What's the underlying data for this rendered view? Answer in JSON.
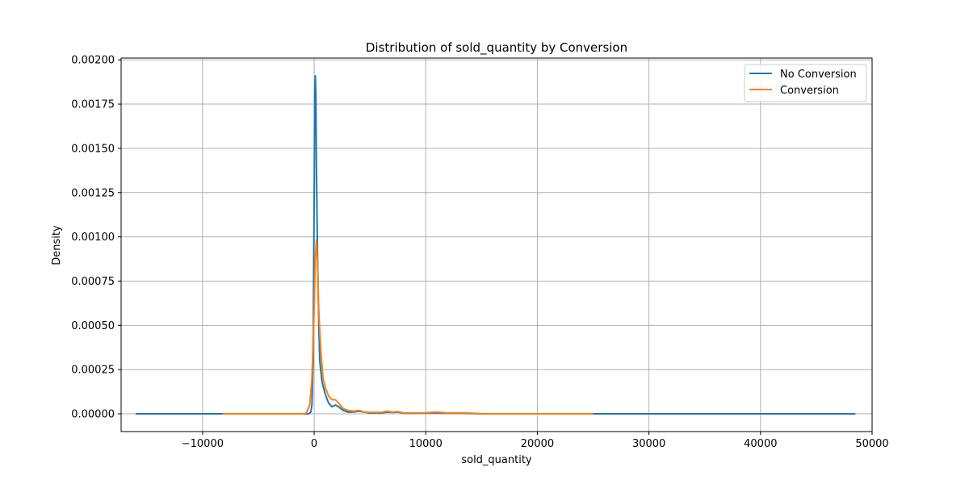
{
  "chart_data": {
    "type": "line",
    "title": "Distribution of sold_quantity by Conversion",
    "xlabel": "sold_quantity",
    "ylabel": "Density",
    "xlim": [
      -17300,
      50000
    ],
    "ylim": [
      -0.0001,
      0.00201
    ],
    "xticks": [
      -10000,
      0,
      10000,
      20000,
      30000,
      40000,
      50000
    ],
    "xtick_labels": [
      "−10000",
      "0",
      "10000",
      "20000",
      "30000",
      "40000",
      "50000"
    ],
    "yticks": [
      0,
      0.00025,
      0.0005,
      0.00075,
      0.001,
      0.00125,
      0.0015,
      0.00175,
      0.002
    ],
    "ytick_labels": [
      "0.00000",
      "0.00025",
      "0.00050",
      "0.00075",
      "0.00100",
      "0.00125",
      "0.00150",
      "0.00175",
      "0.00200"
    ],
    "grid": true,
    "legend_position": "top-right",
    "series": [
      {
        "name": "No Conversion",
        "color": "#1f77b4",
        "points": [
          [
            -16000,
            0
          ],
          [
            -1000,
            0
          ],
          [
            -500,
            0
          ],
          [
            -300,
            1e-05
          ],
          [
            -200,
            5e-05
          ],
          [
            -100,
            0.0003
          ],
          [
            0,
            0.0012
          ],
          [
            50,
            0.0018
          ],
          [
            100,
            0.00191
          ],
          [
            150,
            0.0018
          ],
          [
            200,
            0.0014
          ],
          [
            300,
            0.0009
          ],
          [
            400,
            0.00055
          ],
          [
            500,
            0.0003
          ],
          [
            700,
            0.00018
          ],
          [
            1000,
            0.00011
          ],
          [
            1300,
            6e-05
          ],
          [
            1600,
            4e-05
          ],
          [
            1900,
            5e-05
          ],
          [
            2200,
            4e-05
          ],
          [
            2600,
            2e-05
          ],
          [
            3000,
            1e-05
          ],
          [
            3500,
            1e-05
          ],
          [
            4000,
            1.5e-05
          ],
          [
            4500,
            1e-05
          ],
          [
            5000,
            5e-06
          ],
          [
            6000,
            5e-06
          ],
          [
            6500,
            1e-05
          ],
          [
            7000,
            8e-06
          ],
          [
            7500,
            1e-05
          ],
          [
            8000,
            4e-06
          ],
          [
            9000,
            3e-06
          ],
          [
            10000,
            4e-06
          ],
          [
            11000,
            6e-06
          ],
          [
            12000,
            3e-06
          ],
          [
            13000,
            4e-06
          ],
          [
            14000,
            2e-06
          ],
          [
            15000,
            0
          ],
          [
            20000,
            0
          ],
          [
            30000,
            0
          ],
          [
            40000,
            0
          ],
          [
            48500,
            0
          ]
        ]
      },
      {
        "name": "Conversion",
        "color": "#ff7f0e",
        "points": [
          [
            -8200,
            0
          ],
          [
            -1000,
            0
          ],
          [
            -700,
            5e-06
          ],
          [
            -400,
            5e-05
          ],
          [
            -200,
            0.0002
          ],
          [
            0,
            0.0006
          ],
          [
            100,
            0.00088
          ],
          [
            200,
            0.00098
          ],
          [
            300,
            0.00085
          ],
          [
            400,
            0.0006
          ],
          [
            600,
            0.00035
          ],
          [
            800,
            0.0002
          ],
          [
            1000,
            0.00015
          ],
          [
            1300,
            0.0001
          ],
          [
            1600,
            8e-05
          ],
          [
            1900,
            8e-05
          ],
          [
            2200,
            6e-05
          ],
          [
            2600,
            3e-05
          ],
          [
            3000,
            2e-05
          ],
          [
            3500,
            1.5e-05
          ],
          [
            4000,
            2e-05
          ],
          [
            4500,
            1e-05
          ],
          [
            5000,
            8e-06
          ],
          [
            6000,
            8e-06
          ],
          [
            6500,
            1.5e-05
          ],
          [
            7000,
            1e-05
          ],
          [
            7500,
            1.2e-05
          ],
          [
            8000,
            6e-06
          ],
          [
            9000,
            5e-06
          ],
          [
            10000,
            6e-06
          ],
          [
            11000,
            1e-05
          ],
          [
            12000,
            5e-06
          ],
          [
            13000,
            6e-06
          ],
          [
            14000,
            4e-06
          ],
          [
            15000,
            1e-06
          ],
          [
            17000,
            0
          ],
          [
            25000,
            0
          ]
        ]
      }
    ]
  }
}
